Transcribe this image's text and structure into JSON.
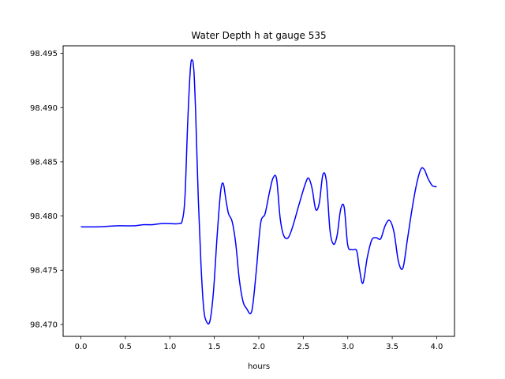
{
  "chart_data": {
    "type": "line",
    "title": "Water Depth h at gauge 535",
    "xlabel": "hours",
    "ylabel": "",
    "xlim": [
      -0.2,
      4.2
    ],
    "ylim": [
      98.4689,
      98.4957
    ],
    "xticks": [
      "0.0",
      "0.5",
      "1.0",
      "1.5",
      "2.0",
      "2.5",
      "3.0",
      "3.5",
      "4.0"
    ],
    "xtick_values": [
      0.0,
      0.5,
      1.0,
      1.5,
      2.0,
      2.5,
      3.0,
      3.5,
      4.0
    ],
    "yticks": [
      "98.470",
      "98.475",
      "98.480",
      "98.485",
      "98.490",
      "98.495"
    ],
    "ytick_values": [
      98.47,
      98.475,
      98.48,
      98.485,
      98.49,
      98.495
    ],
    "grid": false,
    "colors": {
      "line": "#0000ff",
      "axes": "#000000",
      "background": "#ffffff"
    },
    "series": [
      {
        "x": [
          0.0,
          0.2,
          0.4,
          0.6,
          0.7,
          0.8,
          0.9,
          1.0,
          1.1,
          1.14,
          1.17,
          1.2,
          1.23,
          1.25,
          1.27,
          1.29,
          1.32,
          1.35,
          1.38,
          1.41,
          1.45,
          1.49,
          1.53,
          1.57,
          1.6,
          1.63,
          1.66,
          1.7,
          1.74,
          1.78,
          1.82,
          1.86,
          1.92,
          1.97,
          2.02,
          2.07,
          2.12,
          2.16,
          2.2,
          2.24,
          2.28,
          2.33,
          2.38,
          2.45,
          2.52,
          2.56,
          2.6,
          2.64,
          2.68,
          2.72,
          2.76,
          2.8,
          2.84,
          2.88,
          2.92,
          2.96,
          3.0,
          3.05,
          3.1,
          3.13,
          3.17,
          3.22,
          3.27,
          3.32,
          3.37,
          3.42,
          3.47,
          3.52,
          3.57,
          3.62,
          3.67,
          3.72,
          3.77,
          3.82,
          3.86,
          3.9,
          3.95,
          4.0
        ],
        "y": [
          98.479,
          98.479,
          98.4791,
          98.4791,
          98.4792,
          98.4792,
          98.4793,
          98.4793,
          98.4793,
          98.4796,
          98.4818,
          98.4885,
          98.4935,
          98.4944,
          98.4934,
          98.4895,
          98.4815,
          98.4755,
          98.4715,
          98.4703,
          98.4703,
          98.473,
          98.478,
          98.4822,
          98.483,
          98.4815,
          98.4802,
          98.4795,
          98.4775,
          98.4742,
          98.4722,
          98.4715,
          98.4712,
          98.4748,
          98.4793,
          98.4802,
          98.4822,
          98.4835,
          98.4834,
          98.4798,
          98.4782,
          98.478,
          98.479,
          98.481,
          98.4829,
          98.4835,
          98.4825,
          98.4806,
          98.4812,
          98.4838,
          98.4832,
          98.4787,
          98.4774,
          98.4782,
          98.4806,
          98.4808,
          98.4773,
          98.4769,
          98.4768,
          98.4752,
          98.4738,
          98.4762,
          98.4778,
          98.478,
          98.4779,
          98.4791,
          98.4796,
          98.4785,
          98.4758,
          98.4752,
          98.4778,
          98.4805,
          98.4828,
          98.4843,
          98.4843,
          98.4835,
          98.4828,
          98.4827
        ]
      }
    ]
  }
}
